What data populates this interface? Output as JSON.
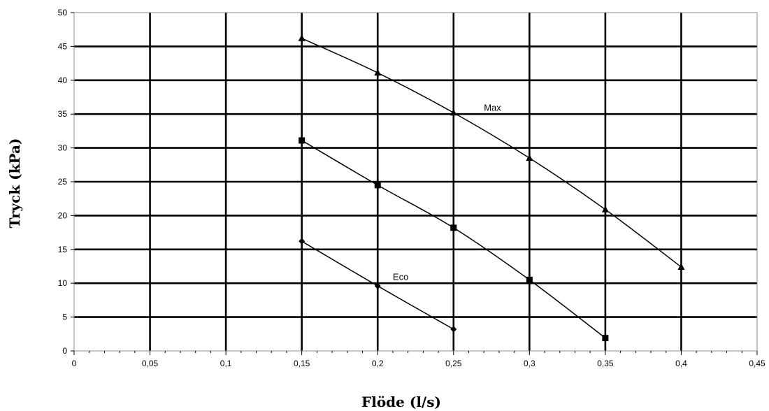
{
  "chart_data": {
    "type": "line",
    "title": "",
    "xlabel": "Flöde (l/s)",
    "ylabel": "Tryck (kPa)",
    "xlim": [
      0,
      0.45
    ],
    "ylim": [
      0,
      50
    ],
    "x_ticks": [
      {
        "value": 0,
        "label": "0"
      },
      {
        "value": 0.05,
        "label": "0,05"
      },
      {
        "value": 0.1,
        "label": "0,1"
      },
      {
        "value": 0.15,
        "label": "0,15"
      },
      {
        "value": 0.2,
        "label": "0,2"
      },
      {
        "value": 0.25,
        "label": "0,25"
      },
      {
        "value": 0.3,
        "label": "0,3"
      },
      {
        "value": 0.35,
        "label": "0,35"
      },
      {
        "value": 0.4,
        "label": "0,4"
      },
      {
        "value": 0.45,
        "label": "0,45"
      }
    ],
    "y_ticks": [
      {
        "value": 0,
        "label": "0"
      },
      {
        "value": 5,
        "label": "5"
      },
      {
        "value": 10,
        "label": "10"
      },
      {
        "value": 15,
        "label": "15"
      },
      {
        "value": 20,
        "label": "20"
      },
      {
        "value": 25,
        "label": "25"
      },
      {
        "value": 30,
        "label": "30"
      },
      {
        "value": 35,
        "label": "35"
      },
      {
        "value": 40,
        "label": "40"
      },
      {
        "value": 45,
        "label": "45"
      },
      {
        "value": 50,
        "label": "50"
      }
    ],
    "grid": true,
    "legend": "none",
    "series": [
      {
        "name": "Max",
        "marker": "triangle",
        "label_at": [
          0.27,
          35.5
        ],
        "x": [
          0.15,
          0.2,
          0.25,
          0.3,
          0.35,
          0.4
        ],
        "y": [
          46.2,
          41.1,
          35.2,
          28.5,
          20.9,
          12.4
        ]
      },
      {
        "name": "",
        "marker": "square",
        "x": [
          0.15,
          0.2,
          0.25,
          0.3,
          0.35
        ],
        "y": [
          31.1,
          24.5,
          18.2,
          10.5,
          1.9
        ]
      },
      {
        "name": "Eco",
        "marker": "diamond",
        "label_at": [
          0.21,
          10.5
        ],
        "x": [
          0.15,
          0.2,
          0.25
        ],
        "y": [
          16.2,
          9.6,
          3.2
        ]
      }
    ]
  }
}
